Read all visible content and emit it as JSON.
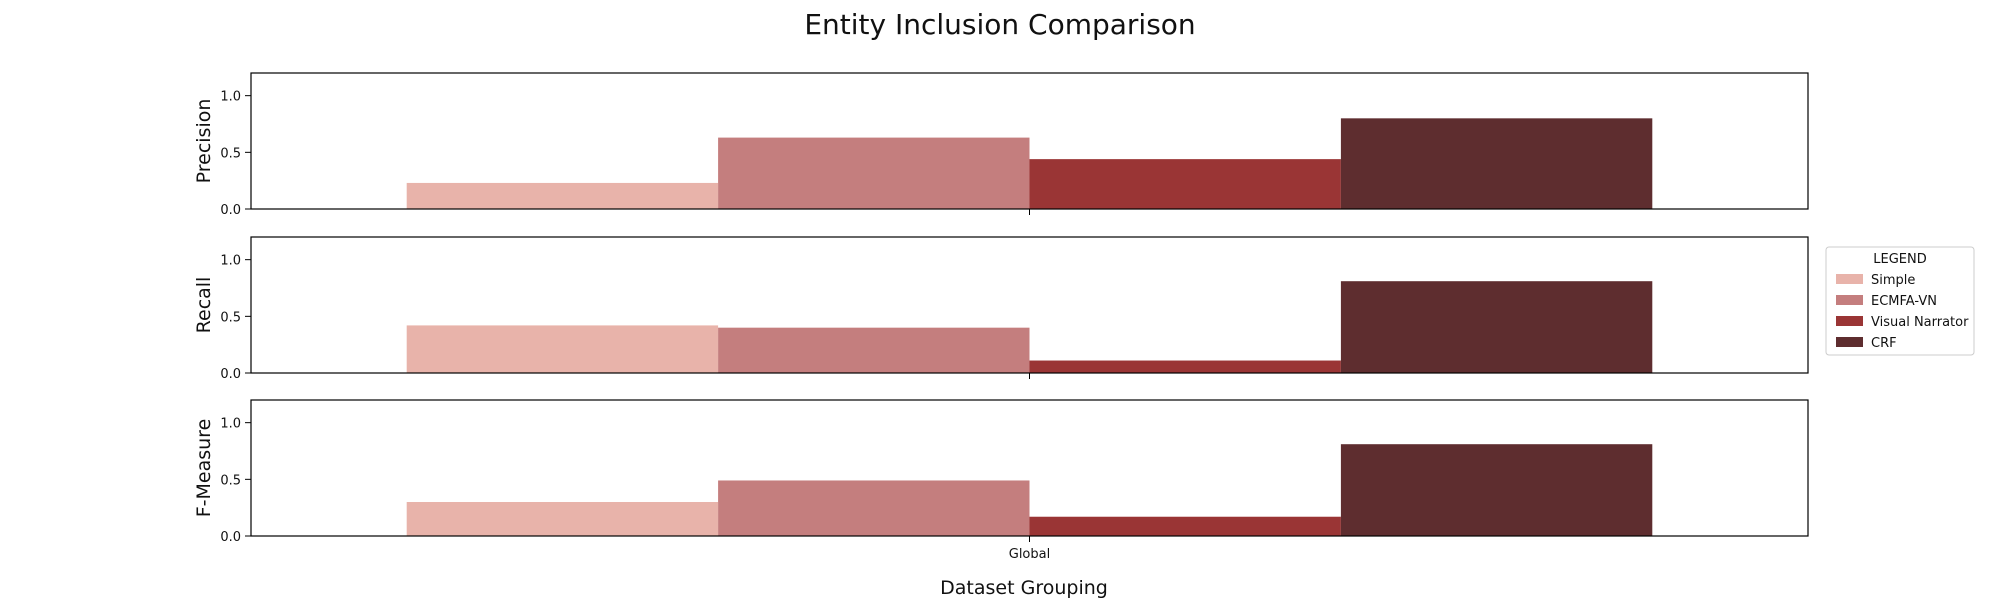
{
  "chart_data": {
    "type": "bar",
    "title": "Entity Inclusion Comparison",
    "xlabel": "Dataset Grouping",
    "categories": [
      "Global"
    ],
    "ylim": [
      0,
      1.2
    ],
    "yticks": [
      "0.0",
      "0.5",
      "1.0"
    ],
    "legend": {
      "title": "LEGEND",
      "placement": "right",
      "entries": [
        "Simple",
        "ECMFA-VN",
        "Visual Narrator",
        "CRF"
      ]
    },
    "series_colors": [
      "#e8b3aa",
      "#c47e7e",
      "#9a3535",
      "#5e2d2f"
    ],
    "panels": [
      {
        "ylabel": "Precision",
        "values": [
          0.23,
          0.63,
          0.44,
          0.8
        ]
      },
      {
        "ylabel": "Recall",
        "values": [
          0.42,
          0.4,
          0.11,
          0.81
        ]
      },
      {
        "ylabel": "F-Measure",
        "values": [
          0.3,
          0.49,
          0.17,
          0.81
        ]
      }
    ]
  }
}
